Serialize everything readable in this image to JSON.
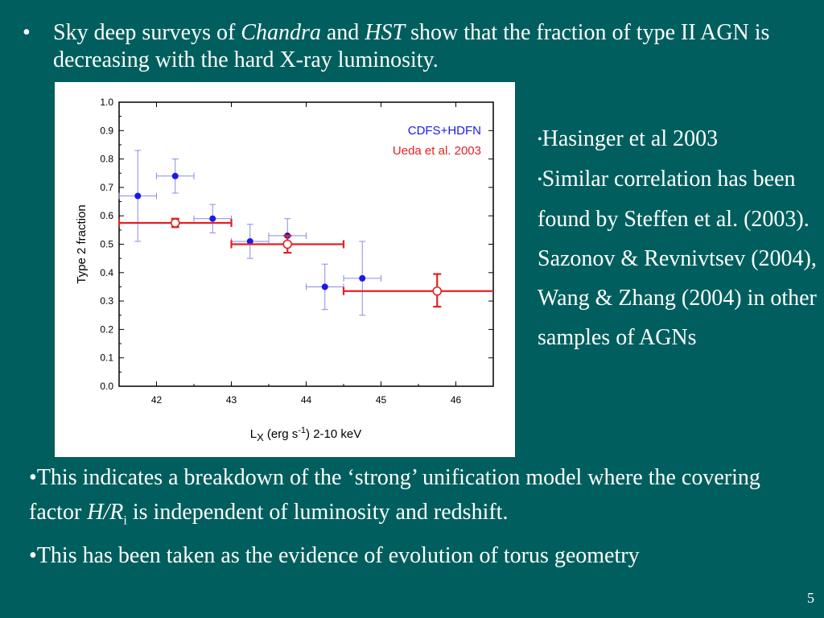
{
  "title": {
    "bullet": "•",
    "part1": "Sky deep surveys of ",
    "chandra": "Chandra",
    "part2": " and ",
    "hst": "HST",
    "part3": " show that the fraction of type II AGN is decreasing  with the hard X-ray luminosity."
  },
  "side": {
    "bullet": "•",
    "line1": "Hasinger et al 2003",
    "line2": "Similar correlation has been found by Steffen et al. (2003). Sazonov & Revnivtsev (2004), Wang & Zhang (2004) in other samples of AGNs"
  },
  "bottom": {
    "bullet": "•",
    "p1_a": "This indicates a breakdown of the ‘strong’ unification model where the  covering factor ",
    "p1_hr": "H/R",
    "p1_sub": "i",
    "p1_b": " is independent of luminosity and redshift.",
    "p2": "This has been taken as the evidence of  evolution of  torus geometry"
  },
  "page_number": "5",
  "colors": {
    "background": "#005f5e",
    "series_blue": "#1a1ae6",
    "series_red": "#e62020"
  },
  "chart_data": {
    "type": "scatter",
    "ylabel": "Type 2 fraction",
    "xlabel_main": "L",
    "xlabel_sub": "X",
    "xlabel_unit_pre": " (erg s",
    "xlabel_unit_sup": "-1",
    "xlabel_unit_post": ") 2-10 keV",
    "xlim": [
      41.5,
      46.5
    ],
    "ylim": [
      0.0,
      1.0
    ],
    "xticks": [
      "42",
      "43",
      "44",
      "45",
      "46"
    ],
    "yticks": [
      "0.0",
      "0.1",
      "0.2",
      "0.3",
      "0.4",
      "0.5",
      "0.6",
      "0.7",
      "0.8",
      "0.9",
      "1.0"
    ],
    "legend": [
      "CDFS+HDFN",
      "Ueda et al. 2003"
    ],
    "legend_position": "top-right",
    "series": [
      {
        "name": "CDFS+HDFN",
        "color": "#1a1ae6",
        "marker": "filled-circle",
        "points": [
          {
            "x": 41.75,
            "y": 0.67,
            "xlo": 41.5,
            "xhi": 42.0,
            "ylo": 0.51,
            "yhi": 0.83
          },
          {
            "x": 42.25,
            "y": 0.74,
            "xlo": 42.0,
            "xhi": 42.5,
            "ylo": 0.68,
            "yhi": 0.8
          },
          {
            "x": 42.75,
            "y": 0.59,
            "xlo": 42.5,
            "xhi": 43.0,
            "ylo": 0.54,
            "yhi": 0.64
          },
          {
            "x": 43.25,
            "y": 0.51,
            "xlo": 43.0,
            "xhi": 43.5,
            "ylo": 0.45,
            "yhi": 0.57
          },
          {
            "x": 43.75,
            "y": 0.53,
            "xlo": 43.5,
            "xhi": 44.0,
            "ylo": 0.47,
            "yhi": 0.59
          },
          {
            "x": 44.25,
            "y": 0.35,
            "xlo": 44.0,
            "xhi": 44.5,
            "ylo": 0.27,
            "yhi": 0.43
          },
          {
            "x": 44.75,
            "y": 0.38,
            "xlo": 44.5,
            "xhi": 45.0,
            "ylo": 0.25,
            "yhi": 0.51
          }
        ]
      },
      {
        "name": "Ueda et al. 2003",
        "color": "#e62020",
        "marker": "open-circle",
        "points": [
          {
            "x": 42.25,
            "y": 0.575,
            "xlo": 41.5,
            "xhi": 43.0,
            "ylo": 0.56,
            "yhi": 0.59
          },
          {
            "x": 43.75,
            "y": 0.5,
            "xlo": 43.0,
            "xhi": 44.5,
            "ylo": 0.47,
            "yhi": 0.53
          },
          {
            "x": 45.75,
            "y": 0.335,
            "xlo": 44.5,
            "xhi": 46.5,
            "ylo": 0.28,
            "yhi": 0.395
          }
        ]
      }
    ]
  }
}
